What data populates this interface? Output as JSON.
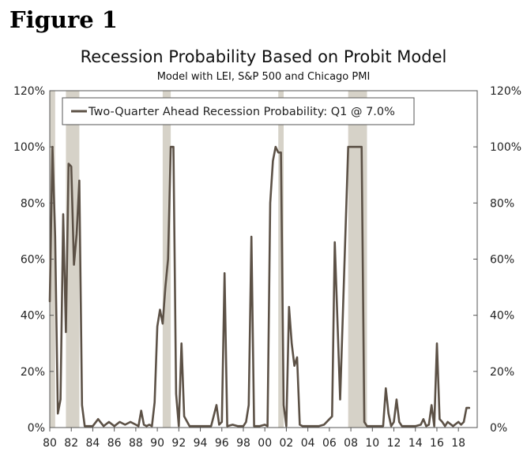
{
  "figure_label": "Figure 1",
  "chart_data": {
    "type": "line",
    "title": "Recession Probability Based on Probit Model",
    "subtitle": "Model with LEI, S&P 500 and Chicago PMI",
    "ylim": [
      0,
      120
    ],
    "y_ticks": [
      0,
      20,
      40,
      60,
      80,
      100,
      120
    ],
    "y_tick_labels": [
      "0%",
      "20%",
      "40%",
      "60%",
      "80%",
      "100%",
      "120%"
    ],
    "x_range": [
      1980,
      2019.75
    ],
    "x_ticks": [
      1980,
      1982,
      1984,
      1986,
      1988,
      1990,
      1992,
      1994,
      1996,
      1998,
      2000,
      2002,
      2004,
      2006,
      2008,
      2010,
      2012,
      2014,
      2016,
      2018
    ],
    "x_tick_labels": [
      "80",
      "82",
      "84",
      "86",
      "88",
      "90",
      "92",
      "94",
      "96",
      "98",
      "00",
      "02",
      "04",
      "06",
      "08",
      "10",
      "12",
      "14",
      "16",
      "18"
    ],
    "recessions": [
      {
        "start": 1980.0,
        "end": 1980.5
      },
      {
        "start": 1981.5,
        "end": 1982.75
      },
      {
        "start": 1990.5,
        "end": 1991.25
      },
      {
        "start": 2001.25,
        "end": 2001.75
      },
      {
        "start": 2007.75,
        "end": 2009.5
      }
    ],
    "legend": {
      "position": "top-left",
      "label": "Two-Quarter Ahead Recession Probability: Q1 @ 7.0%"
    },
    "series": [
      {
        "name": "Two-Quarter Ahead Recession Probability",
        "color": "#5c5146",
        "x": [
          1980.0,
          1980.25,
          1980.5,
          1980.75,
          1981.0,
          1981.25,
          1981.5,
          1981.75,
          1982.0,
          1982.25,
          1982.5,
          1982.75,
          1983.0,
          1983.25,
          1983.5,
          1984.0,
          1984.5,
          1985.0,
          1985.5,
          1986.0,
          1986.5,
          1987.0,
          1987.5,
          1988.0,
          1988.25,
          1988.5,
          1988.75,
          1989.0,
          1989.25,
          1989.5,
          1989.75,
          1990.0,
          1990.25,
          1990.5,
          1990.75,
          1991.0,
          1991.25,
          1991.5,
          1991.75,
          1992.0,
          1992.25,
          1992.5,
          1993.0,
          1994.0,
          1995.0,
          1995.5,
          1995.75,
          1996.0,
          1996.25,
          1996.5,
          1997.0,
          1997.5,
          1998.0,
          1998.25,
          1998.5,
          1998.75,
          1999.0,
          1999.5,
          2000.0,
          2000.25,
          2000.5,
          2000.75,
          2001.0,
          2001.25,
          2001.5,
          2001.75,
          2002.0,
          2002.25,
          2002.5,
          2002.75,
          2003.0,
          2003.25,
          2003.5,
          2004.0,
          2005.0,
          2005.5,
          2006.0,
          2006.25,
          2006.5,
          2007.0,
          2007.25,
          2007.5,
          2007.75,
          2008.0,
          2008.5,
          2009.0,
          2009.25,
          2009.5,
          2009.75,
          2010.0,
          2010.5,
          2011.0,
          2011.25,
          2011.5,
          2011.75,
          2012.0,
          2012.25,
          2012.5,
          2012.75,
          2013.0,
          2013.5,
          2014.0,
          2014.5,
          2014.75,
          2015.0,
          2015.25,
          2015.5,
          2015.75,
          2016.0,
          2016.25,
          2016.5,
          2016.75,
          2017.0,
          2017.5,
          2018.0,
          2018.25,
          2018.5,
          2018.75,
          2019.0
        ],
        "values": [
          45,
          100,
          68,
          5,
          10,
          76,
          34,
          94,
          93,
          58,
          69,
          88,
          8,
          0.5,
          0.5,
          0.5,
          3,
          0.5,
          2,
          0.5,
          2,
          1,
          2,
          1,
          0.5,
          6,
          1,
          0.5,
          1,
          0.5,
          9,
          36,
          42,
          37,
          50,
          60,
          100,
          100,
          12,
          0.5,
          30,
          4,
          0.5,
          0.5,
          0.5,
          8,
          1,
          2,
          55,
          0.5,
          1,
          0.5,
          0.5,
          2,
          8,
          68,
          0.5,
          0.5,
          1,
          0.5,
          80,
          95,
          100,
          98,
          98,
          8,
          0.5,
          43,
          30,
          22,
          25,
          1,
          0.5,
          0.5,
          0.5,
          1,
          3,
          4,
          66,
          10,
          40,
          70,
          100,
          100,
          100,
          100,
          2,
          0.5,
          0.5,
          0.5,
          0.5,
          0.5,
          14,
          5,
          0.5,
          2,
          10,
          2,
          0.5,
          0.5,
          0.5,
          0.5,
          1,
          3,
          0.5,
          1,
          8,
          0.5,
          30,
          3,
          2,
          0.5,
          2,
          0.5,
          2,
          1,
          2,
          7,
          7
        ]
      }
    ]
  }
}
